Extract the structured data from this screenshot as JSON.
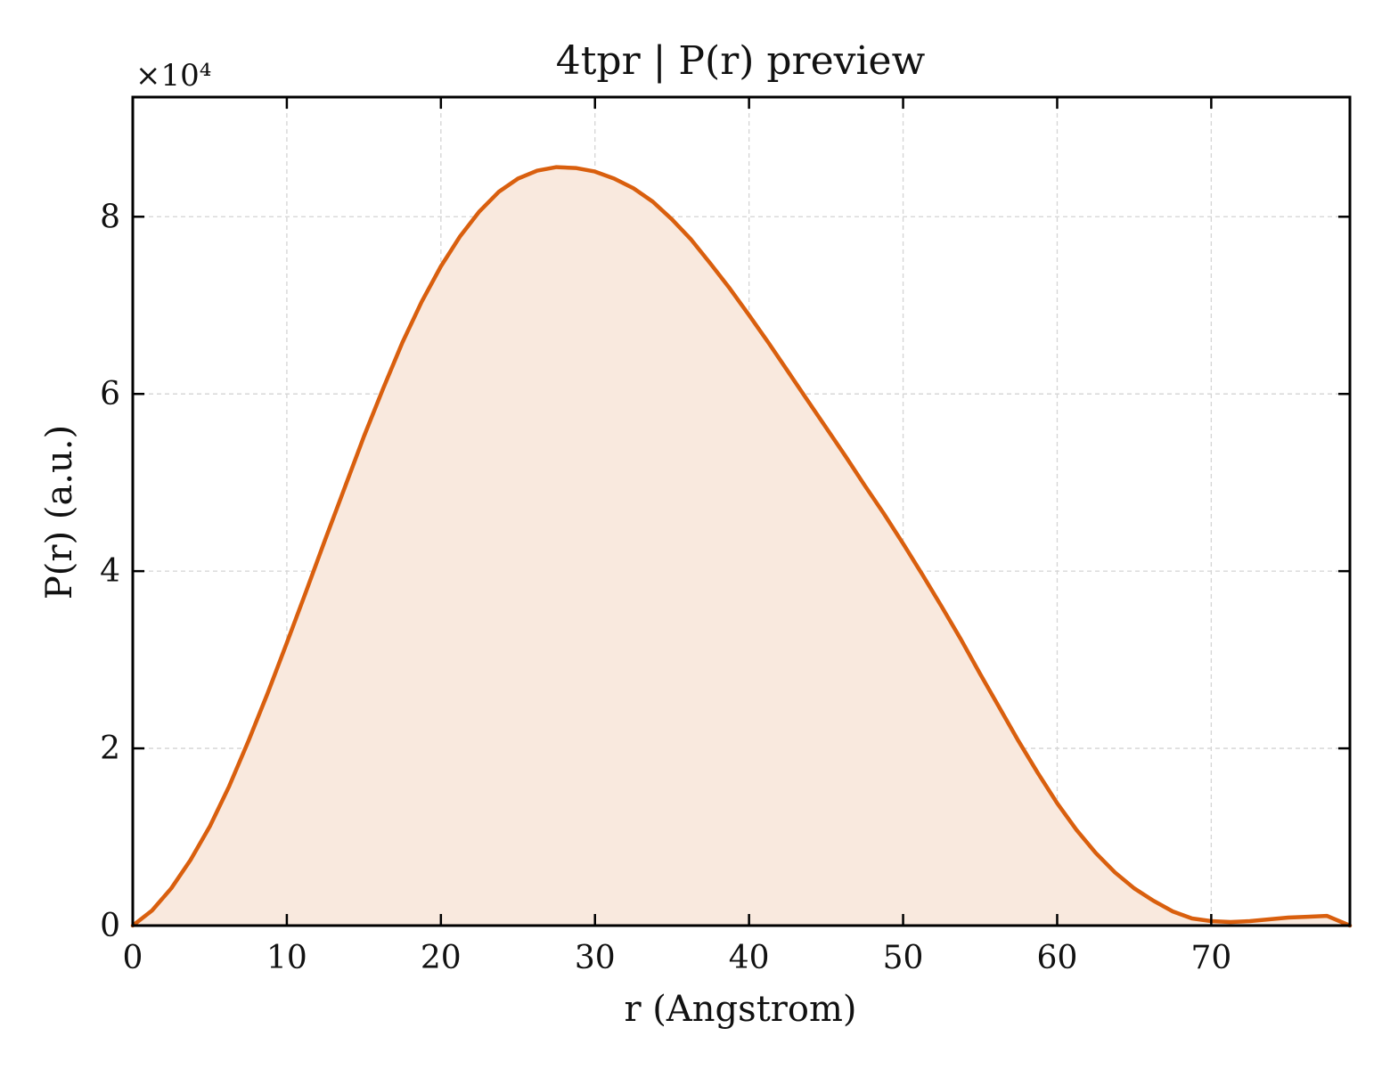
{
  "chart_data": {
    "type": "area",
    "title": "4tpr | P(r) preview",
    "xlabel": "r (Angstrom)",
    "ylabel": "P(r) (a.u.)",
    "y_multiplier": "×10⁴",
    "xlim": [
      0,
      79
    ],
    "ylim": [
      0,
      9.35
    ],
    "xticks": [
      0,
      10,
      20,
      30,
      40,
      50,
      60,
      70
    ],
    "yticks": [
      0,
      2,
      4,
      6,
      8
    ],
    "grid": true,
    "legend": "none",
    "line_color": "#d95f0e",
    "fill_color": "#f9e9de",
    "series": [
      {
        "x": [
          0,
          1.25,
          2.5,
          3.75,
          5,
          6.25,
          7.5,
          8.75,
          10,
          11.25,
          12.5,
          13.75,
          15,
          16.25,
          17.5,
          18.75,
          20,
          21.25,
          22.5,
          23.75,
          25,
          26.25,
          27.5,
          28.75,
          30,
          31.25,
          32.5,
          33.75,
          35,
          36.25,
          37.5,
          38.75,
          40,
          41.25,
          42.5,
          43.75,
          45,
          46.25,
          47.5,
          48.75,
          50,
          51.25,
          52.5,
          53.75,
          55,
          56.25,
          57.5,
          58.75,
          60,
          61.25,
          62.5,
          63.75,
          65,
          66.25,
          67.5,
          68.75,
          70,
          71.25,
          72.5,
          73.75,
          75,
          76.25,
          77.5,
          79
        ],
        "values": [
          0,
          0.17,
          0.42,
          0.74,
          1.12,
          1.57,
          2.08,
          2.62,
          3.19,
          3.77,
          4.36,
          4.94,
          5.52,
          6.06,
          6.58,
          7.04,
          7.44,
          7.78,
          8.06,
          8.28,
          8.43,
          8.52,
          8.56,
          8.55,
          8.51,
          8.43,
          8.32,
          8.17,
          7.97,
          7.74,
          7.47,
          7.19,
          6.89,
          6.58,
          6.26,
          5.94,
          5.62,
          5.3,
          4.97,
          4.65,
          4.31,
          3.96,
          3.6,
          3.23,
          2.84,
          2.46,
          2.08,
          1.72,
          1.38,
          1.08,
          0.82,
          0.6,
          0.42,
          0.28,
          0.16,
          0.08,
          0.05,
          0.04,
          0.05,
          0.07,
          0.09,
          0.1,
          0.11,
          0
        ]
      }
    ]
  }
}
